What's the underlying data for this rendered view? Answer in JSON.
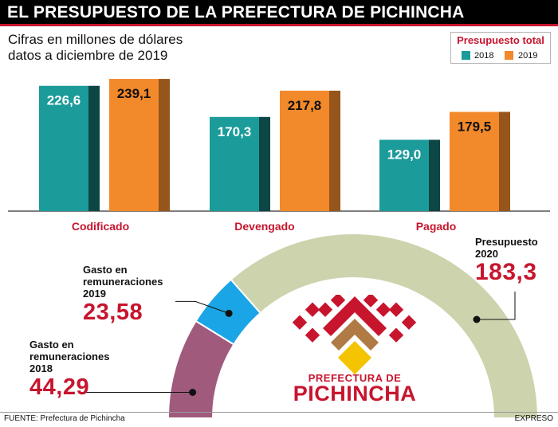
{
  "title": "EL PRESUPUESTO DE LA PREFECTURA DE PICHINCHA",
  "subtitle": {
    "line1": "Cifras en millones de dólares",
    "line2": "datos a diciembre de 2019"
  },
  "legend": {
    "title": "Presupuesto total",
    "items": [
      {
        "label": "2018",
        "color": "#1b9b9a"
      },
      {
        "label": "2019",
        "color": "#f2892a"
      }
    ]
  },
  "chart_data": [
    {
      "type": "bar",
      "categories": [
        "Codificado",
        "Devengado",
        "Pagado"
      ],
      "series": [
        {
          "name": "2018",
          "values": [
            226.6,
            170.3,
            129.0
          ],
          "labels": [
            "226,6",
            "170,3",
            "129,0"
          ],
          "color": "#1b9b9a"
        },
        {
          "name": "2019",
          "values": [
            239.1,
            217.8,
            179.5
          ],
          "labels": [
            "239,1",
            "217,8",
            "179,5"
          ],
          "color": "#f2892a"
        }
      ],
      "ylim": [
        0,
        250
      ],
      "grid": false,
      "legend_position": "top-right"
    },
    {
      "type": "pie",
      "style": "semicircle",
      "slices": [
        {
          "label_lines": [
            "Gasto en",
            "remuneraciones",
            "2018"
          ],
          "value": 44.29,
          "value_label": "44,29",
          "color": "#a05a7c"
        },
        {
          "label_lines": [
            "Gasto en",
            "remuneraciones",
            "2019"
          ],
          "value": 23.58,
          "value_label": "23,58",
          "color": "#1aa5e6"
        },
        {
          "label_lines": [
            "Presupuesto",
            "2020"
          ],
          "value": 183.3,
          "value_label": "183,3",
          "color": "#cdd3ad"
        }
      ]
    }
  ],
  "logo": {
    "line1": "PREFECTURA DE",
    "line2": "PICHINCHA"
  },
  "footer": {
    "source": "FUENTE: Prefectura de Pichincha",
    "credit": "EXPRESO"
  }
}
